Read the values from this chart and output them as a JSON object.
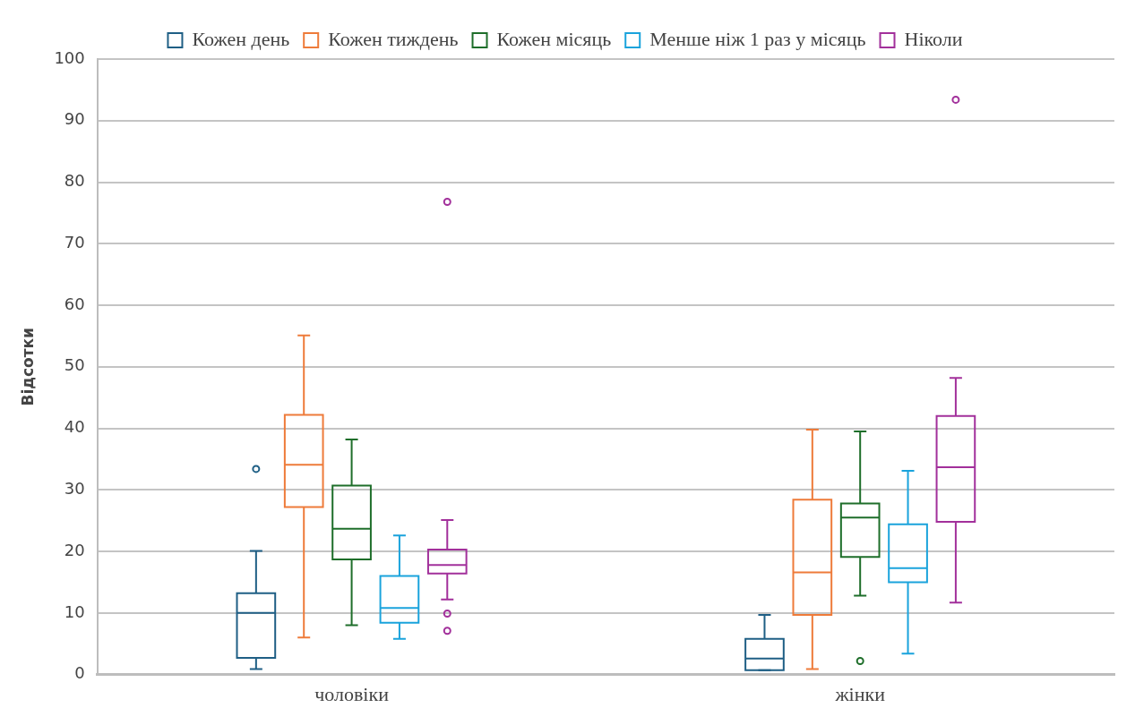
{
  "chart_data": {
    "type": "box",
    "ylabel": "Відсотки",
    "categories": [
      "чоловіки",
      "жінки"
    ],
    "ylim": [
      0,
      100
    ],
    "yticks": [
      0,
      10,
      20,
      30,
      40,
      50,
      60,
      70,
      80,
      90,
      100
    ],
    "grid": "y",
    "legend": "top",
    "series": [
      {
        "name": "Кожен день",
        "color": "#1f5f85",
        "boxes": [
          {
            "low": 0.9,
            "q1": 2.7,
            "median": 10,
            "q3": 13.2,
            "high": 20.1,
            "outliers": [
              33.4
            ]
          },
          {
            "low": 0.7,
            "q1": 0.7,
            "median": 2.6,
            "q3": 5.8,
            "high": 9.7
          }
        ]
      },
      {
        "name": "Кожен тиждень",
        "color": "#ee7b3a",
        "boxes": [
          {
            "low": 6,
            "q1": 27.2,
            "median": 34.1,
            "q3": 42.2,
            "high": 55.1
          },
          {
            "low": 0.9,
            "q1": 9.7,
            "median": 16.6,
            "q3": 28.4,
            "high": 39.8
          }
        ]
      },
      {
        "name": "Кожен місяць",
        "color": "#1e6e2a",
        "boxes": [
          {
            "low": 8,
            "q1": 18.7,
            "median": 23.7,
            "q3": 30.7,
            "high": 38.2
          },
          {
            "low": 12.8,
            "q1": 19.1,
            "median": 25.5,
            "q3": 27.8,
            "high": 39.5,
            "outliers": [
              2.2
            ]
          }
        ]
      },
      {
        "name": "Менше ніж 1 раз у місяць",
        "color": "#1aa3dc",
        "boxes": [
          {
            "low": 5.8,
            "q1": 8.4,
            "median": 10.8,
            "q3": 16,
            "high": 22.6
          },
          {
            "low": 3.4,
            "q1": 15,
            "median": 17.3,
            "q3": 24.4,
            "high": 33.1
          }
        ]
      },
      {
        "name": "Ніколи",
        "color": "#a2309b",
        "boxes": [
          {
            "low": 12.2,
            "q1": 16.4,
            "median": 17.8,
            "q3": 20.3,
            "high": 25.1,
            "outliers": [
              9.9,
              7.1,
              76.8
            ]
          },
          {
            "low": 11.7,
            "q1": 24.8,
            "median": 33.7,
            "q3": 42,
            "high": 48.2,
            "outliers": [
              93.4
            ]
          }
        ]
      }
    ]
  }
}
